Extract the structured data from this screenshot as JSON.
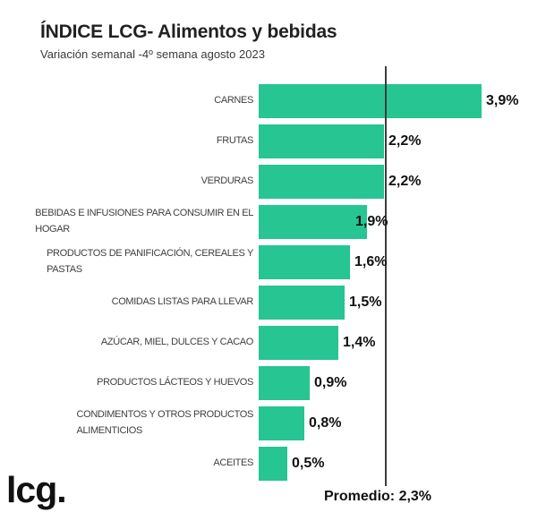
{
  "header": {
    "title": "ÍNDICE LCG- Alimentos y bebidas",
    "subtitle": "Variación semanal -4º semana agosto 2023"
  },
  "chart_data": {
    "type": "bar",
    "orientation": "horizontal",
    "title": "ÍNDICE LCG- Alimentos y bebidas",
    "subtitle": "Variación semanal -4º semana agosto 2023",
    "categories": [
      "CARNES",
      "FRUTAS",
      "VERDURAS",
      "BEBIDAS E INFUSIONES PARA CONSUMIR EN EL\nHOGAR",
      "PRODUCTOS DE PANIFICACIÓN, CEREALES Y\nPASTAS",
      "COMIDAS LISTAS PARA LLEVAR",
      "AZÚCAR, MIEL, DULCES Y CACAO",
      "PRODUCTOS LÁCTEOS Y HUEVOS",
      "CONDIMENTOS Y OTROS PRODUCTOS\nALIMENTICIOS",
      "ACEITES"
    ],
    "values": [
      3.9,
      2.2,
      2.2,
      1.9,
      1.6,
      1.5,
      1.4,
      0.9,
      0.8,
      0.5
    ],
    "value_labels": [
      "3,9%",
      "2,2%",
      "2,2%",
      "1,9%",
      "1,6%",
      "1,5%",
      "1,4%",
      "0,9%",
      "0,8%",
      "0,5%"
    ],
    "average": {
      "value": 2.3,
      "label": "Promedio: 2,3%"
    },
    "bar_color": "#26c591",
    "xlim": [
      0,
      4.2
    ],
    "grid": false,
    "legend": "none",
    "data_labels": "outside-end"
  },
  "footer": {
    "logo_text": "lcg."
  }
}
